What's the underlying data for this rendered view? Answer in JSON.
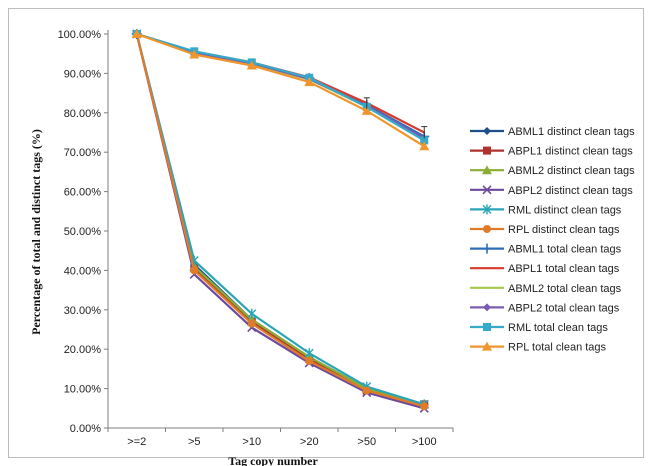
{
  "chart_data": {
    "type": "line",
    "title": "",
    "xlabel": "Tag copy number",
    "ylabel": "Percentage of total and distinct tags (%)",
    "categories": [
      ">=2",
      ">5",
      ">10",
      ">20",
      ">50",
      ">100"
    ],
    "ylim": [
      0,
      100
    ],
    "ytick_values": [
      0,
      10,
      20,
      30,
      40,
      50,
      60,
      70,
      80,
      90,
      100
    ],
    "ytick_labels": [
      "0.00%",
      "10.00%",
      "20.00%",
      "30.00%",
      "40.00%",
      "50.00%",
      "60.00%",
      "70.00%",
      "80.00%",
      "90.00%",
      "100.00%"
    ],
    "grid": false,
    "legend_position": "right",
    "series": [
      {
        "name": "ABML1 distinct clean tags",
        "color": "#1f4e8c",
        "marker": "diamond",
        "values": [
          100,
          41.5,
          27.5,
          18.0,
          10.0,
          6.0
        ]
      },
      {
        "name": "ABPL1 distinct clean tags",
        "color": "#b0322f",
        "marker": "square",
        "values": [
          100,
          40.5,
          27.0,
          17.5,
          9.5,
          6.0
        ]
      },
      {
        "name": "ABML2 distinct clean tags",
        "color": "#8cad35",
        "marker": "triangle",
        "values": [
          100,
          41.0,
          27.5,
          18.0,
          10.0,
          6.0
        ]
      },
      {
        "name": "ABPL2 distinct clean tags",
        "color": "#6d4a9c",
        "marker": "x",
        "values": [
          100,
          39.0,
          25.5,
          16.5,
          9.0,
          5.0
        ]
      },
      {
        "name": "RML distinct clean tags",
        "color": "#2aa5b8",
        "marker": "star",
        "values": [
          100,
          42.5,
          29.0,
          19.0,
          10.5,
          6.0
        ]
      },
      {
        "name": "RPL distinct clean tags",
        "color": "#e07b2a",
        "marker": "circle",
        "values": [
          100,
          40.0,
          26.5,
          17.0,
          9.5,
          5.5
        ]
      },
      {
        "name": "ABML1 total clean tags",
        "color": "#2e6db5",
        "marker": "plus",
        "values": [
          100,
          95.2,
          92.5,
          88.8,
          82.0,
          74.0
        ]
      },
      {
        "name": "ABPL1 total clean tags",
        "color": "#d93a2b",
        "marker": "none",
        "values": [
          100,
          95.5,
          92.8,
          89.0,
          82.5,
          75.0
        ]
      },
      {
        "name": "ABML2 total clean tags",
        "color": "#a6c84f",
        "marker": "none",
        "values": [
          100,
          95.0,
          92.2,
          88.5,
          81.5,
          73.0
        ]
      },
      {
        "name": "ABPL2 total clean tags",
        "color": "#7b5bb3",
        "marker": "diamond",
        "values": [
          100,
          95.3,
          92.6,
          88.6,
          81.8,
          73.5
        ]
      },
      {
        "name": "RML total clean tags",
        "color": "#35a9c9",
        "marker": "square",
        "values": [
          100,
          95.6,
          92.8,
          88.9,
          81.5,
          73.0
        ]
      },
      {
        "name": "RPL total clean tags",
        "color": "#f0952e",
        "marker": "triangle",
        "values": [
          100,
          94.8,
          92.0,
          87.8,
          80.5,
          71.5
        ]
      }
    ]
  }
}
